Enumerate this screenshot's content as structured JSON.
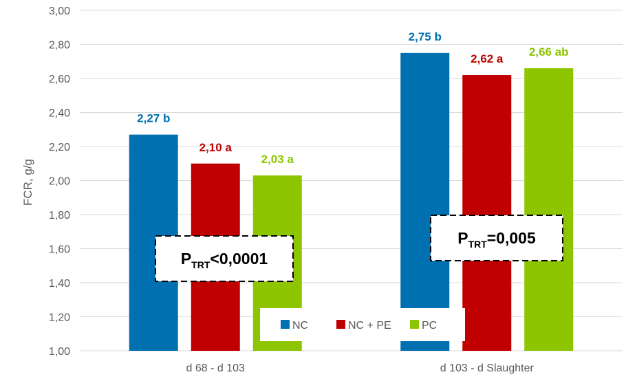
{
  "chart_data": {
    "type": "bar",
    "ylabel": "FCR, g/g",
    "ylim": [
      1.0,
      3.0
    ],
    "ytick_step": 0.2,
    "grid": true,
    "categories": [
      "d 68 - d 103",
      "d 103 - d Slaughter"
    ],
    "series": [
      {
        "name": "NC",
        "color": "#0070B0",
        "values": [
          2.27,
          2.75
        ],
        "labels": [
          "2,27 b",
          "2,75 b"
        ]
      },
      {
        "name": "NC + PE",
        "color": "#C00000",
        "values": [
          2.1,
          2.62
        ],
        "labels": [
          "2,10 a",
          "2,62 a"
        ]
      },
      {
        "name": "PC",
        "color": "#8DC500",
        "values": [
          2.03,
          2.66
        ],
        "labels": [
          "2,03 a",
          "2,66 ab"
        ]
      }
    ],
    "annotations": [
      {
        "main": "P",
        "sub": "TRT",
        "rest": "<0,0001"
      },
      {
        "main": "P",
        "sub": "TRT",
        "rest": "=0,005"
      }
    ],
    "legend": {
      "placement": "bottom-center"
    }
  }
}
